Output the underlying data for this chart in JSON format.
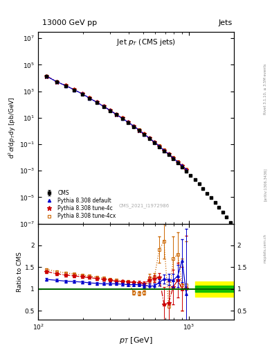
{
  "title_top": "13000 GeV pp",
  "title_right": "Jets",
  "plot_title": "Jet $p_T$ (CMS jets)",
  "xlabel": "$p_T$ [GeV]",
  "ylabel_main": "d$^2\\sigma$/d$p_T$dy [pb/GeV]",
  "ylabel_ratio": "Ratio to CMS",
  "watermark": "CMS_2021_I1972986",
  "rivet_text": "Rivet 3.1.10, ≥ 3.5M events",
  "arxiv_text": "[arXiv:1306.3436]",
  "mcplots_text": "mcplots.cern.ch",
  "cms_x": [
    114,
    133,
    153,
    174,
    196,
    220,
    245,
    272,
    300,
    330,
    362,
    396,
    432,
    469,
    507,
    548,
    592,
    638,
    686,
    737,
    790,
    846,
    905,
    967,
    1032,
    1101,
    1172,
    1248,
    1327,
    1410,
    1497,
    1588,
    1685,
    1787,
    1895
  ],
  "cms_y": [
    13000,
    5000,
    2500,
    1200,
    600,
    280,
    140,
    68,
    34,
    17,
    8.5,
    4.3,
    2.1,
    1.1,
    0.52,
    0.26,
    0.13,
    0.065,
    0.031,
    0.016,
    0.0079,
    0.0039,
    0.0019,
    0.00096,
    0.00045,
    0.00022,
    9.8e-05,
    4.5e-05,
    2e-05,
    9e-06,
    3.9e-06,
    1.7e-06,
    7e-07,
    3e-07,
    1.2e-07
  ],
  "cms_yerr": [
    800,
    300,
    150,
    70,
    35,
    16,
    8,
    4,
    2,
    1,
    0.5,
    0.25,
    0.12,
    0.06,
    0.03,
    0.015,
    0.007,
    0.004,
    0.002,
    0.001,
    0.0005,
    0.00025,
    0.00012,
    6e-05,
    3e-05,
    1.5e-05,
    7e-06,
    3e-06,
    1.4e-06,
    6e-07,
    3e-07,
    1.2e-07,
    5e-08,
    2e-08,
    8e-09
  ],
  "cms_color": "#000000",
  "py_default_x": [
    114,
    133,
    153,
    174,
    196,
    220,
    245,
    272,
    300,
    330,
    362,
    396,
    432,
    469,
    507,
    548,
    592,
    638,
    686,
    737,
    790,
    846,
    905,
    967
  ],
  "py_default_y": [
    13500,
    5200,
    2600,
    1280,
    640,
    295,
    148,
    72,
    36,
    18,
    9.0,
    4.6,
    2.3,
    1.15,
    0.57,
    0.285,
    0.143,
    0.072,
    0.034,
    0.018,
    0.009,
    0.0046,
    0.0023,
    0.0012
  ],
  "py_default_yerr": [
    0,
    0,
    0,
    0,
    0,
    0,
    0,
    0,
    0,
    0,
    0,
    0,
    0,
    0,
    0,
    0,
    0,
    0,
    0,
    0,
    0,
    0,
    0,
    0
  ],
  "py_default_color": "#0000cc",
  "py_4c_x": [
    114,
    133,
    153,
    174,
    196,
    220,
    245,
    272,
    300,
    330,
    362,
    396,
    432,
    469,
    507,
    548,
    592,
    638,
    686,
    737,
    790,
    846,
    905,
    967
  ],
  "py_4c_y": [
    13800,
    5300,
    2650,
    1300,
    650,
    305,
    152,
    74,
    37,
    18.5,
    9.2,
    4.7,
    2.35,
    1.18,
    0.58,
    0.292,
    0.146,
    0.073,
    0.035,
    0.018,
    0.009,
    0.0046,
    0.0023,
    0.0012
  ],
  "py_4c_color": "#cc0000",
  "py_4cx_x": [
    114,
    133,
    153,
    174,
    196,
    220,
    245,
    272,
    300,
    330,
    362,
    396,
    432,
    469,
    507,
    548,
    592,
    638,
    686,
    737,
    790,
    846,
    905,
    967
  ],
  "py_4cx_y": [
    14000,
    5400,
    2700,
    1320,
    660,
    310,
    155,
    75,
    37.5,
    18.8,
    9.4,
    4.8,
    2.4,
    1.2,
    0.59,
    0.298,
    0.149,
    0.075,
    0.036,
    0.019,
    0.0095,
    0.0048,
    0.0024,
    0.0013
  ],
  "py_4cx_color": "#cc6600",
  "ratio_default_x": [
    114,
    133,
    153,
    174,
    196,
    220,
    245,
    272,
    300,
    330,
    362,
    396,
    432,
    469,
    507,
    548,
    592,
    638,
    686,
    737,
    790,
    846,
    905,
    967
  ],
  "ratio_default_y": [
    1.22,
    1.2,
    1.18,
    1.17,
    1.16,
    1.14,
    1.13,
    1.12,
    1.12,
    1.12,
    1.11,
    1.1,
    1.1,
    1.1,
    1.08,
    1.07,
    1.07,
    1.15,
    1.23,
    1.22,
    1.2,
    1.3,
    1.65,
    0.88
  ],
  "ratio_default_yerr": [
    0.03,
    0.03,
    0.03,
    0.03,
    0.03,
    0.03,
    0.03,
    0.03,
    0.03,
    0.03,
    0.03,
    0.03,
    0.03,
    0.03,
    0.05,
    0.05,
    0.05,
    0.07,
    0.1,
    0.12,
    0.15,
    0.25,
    0.5,
    1.5
  ],
  "ratio_4c_x": [
    114,
    133,
    153,
    174,
    196,
    220,
    245,
    272,
    300,
    330,
    362,
    396,
    432,
    469,
    507,
    548,
    592,
    638,
    686,
    737,
    790,
    846,
    905,
    967
  ],
  "ratio_4c_y": [
    1.4,
    1.35,
    1.32,
    1.3,
    1.28,
    1.26,
    1.24,
    1.22,
    1.2,
    1.18,
    1.17,
    1.16,
    1.15,
    1.14,
    1.13,
    1.2,
    1.23,
    1.27,
    0.65,
    0.68,
    1.05,
    1.2,
    1.0,
    1.02
  ],
  "ratio_4c_yerr": [
    0.03,
    0.03,
    0.03,
    0.03,
    0.03,
    0.03,
    0.03,
    0.03,
    0.03,
    0.03,
    0.03,
    0.03,
    0.03,
    0.05,
    0.05,
    0.08,
    0.08,
    0.1,
    0.4,
    0.5,
    0.4,
    0.4,
    0.5,
    1.2
  ],
  "ratio_4cx_x": [
    114,
    133,
    153,
    174,
    196,
    220,
    245,
    272,
    300,
    330,
    362,
    396,
    432,
    469,
    507,
    548,
    592,
    638,
    686,
    737,
    790,
    846,
    905,
    967
  ],
  "ratio_4cx_y": [
    1.45,
    1.4,
    1.37,
    1.34,
    1.32,
    1.3,
    1.27,
    1.25,
    1.22,
    1.2,
    1.18,
    1.17,
    0.92,
    0.9,
    0.92,
    1.25,
    1.27,
    1.9,
    2.1,
    0.6,
    1.7,
    1.8,
    1.1,
    1.1
  ],
  "ratio_4cx_yerr": [
    0.03,
    0.03,
    0.03,
    0.03,
    0.03,
    0.03,
    0.03,
    0.03,
    0.03,
    0.03,
    0.03,
    0.03,
    0.05,
    0.05,
    0.05,
    0.1,
    0.1,
    0.3,
    0.4,
    0.5,
    0.5,
    0.5,
    0.6,
    1.0
  ],
  "band_x_right_start": 1100,
  "band_x_end": 2000,
  "band_green_lo": 0.93,
  "band_green_hi": 1.07,
  "band_yellow_lo": 0.82,
  "band_yellow_hi": 1.18,
  "xlim": [
    100,
    2000
  ],
  "ylim_main": [
    1e-07,
    30000000.0
  ],
  "ylim_ratio": [
    0.3,
    2.5
  ],
  "legend_cms": "CMS",
  "legend_default": "Pythia 8.308 default",
  "legend_4c": "Pythia 8.308 tune-4c",
  "legend_4cx": "Pythia 8.308 tune-4cx"
}
